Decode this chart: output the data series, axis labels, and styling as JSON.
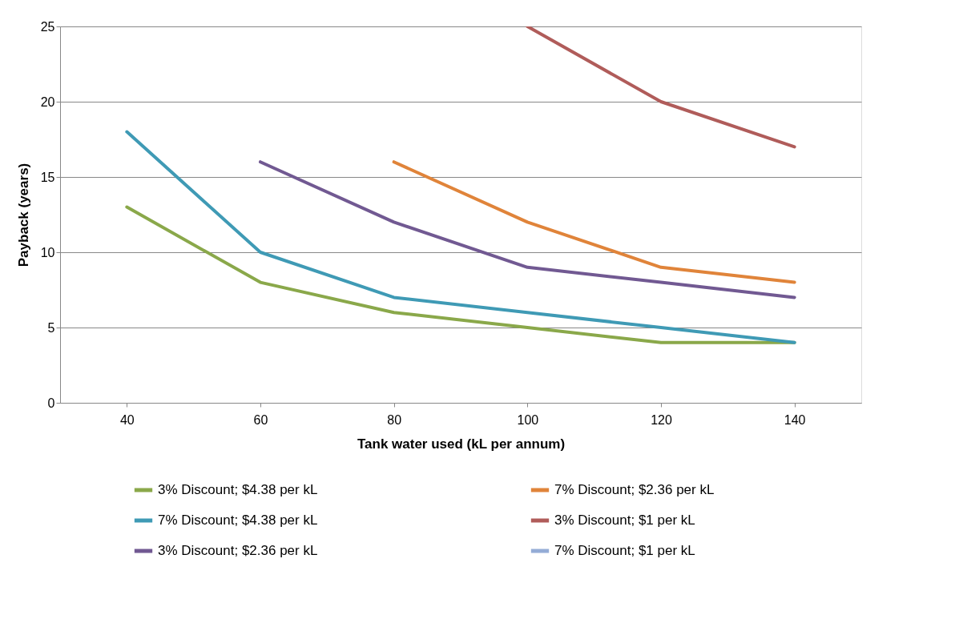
{
  "chart_data": {
    "type": "line",
    "xlabel": "Tank water used (kL per annum)",
    "ylabel": "Payback (years)",
    "categories": [
      "40",
      "60",
      "80",
      "100",
      "120",
      "140"
    ],
    "series": [
      {
        "name": "3% Discount;  $4.38 per kL",
        "color": "#8aa84a",
        "values": [
          13,
          8,
          6,
          5,
          4,
          4
        ]
      },
      {
        "name": "7% Discount;  $4.38 per kL",
        "color": "#3f9ab5",
        "values": [
          18,
          10,
          7,
          6,
          5,
          4
        ]
      },
      {
        "name": "3% Discount;  $2.36 per kL",
        "color": "#715992",
        "values": [
          null,
          16,
          12,
          9,
          8,
          7
        ]
      },
      {
        "name": "7% Discount;  $2.36 per kL",
        "color": "#e0843a",
        "values": [
          null,
          null,
          16,
          12,
          9,
          8
        ]
      },
      {
        "name": "3% Discount;  $1 per kL",
        "color": "#b05c5a",
        "values": [
          null,
          null,
          null,
          25,
          20,
          17
        ]
      },
      {
        "name": "7% Discount;  $1 per kL",
        "color": "#94acd6",
        "values": [
          null,
          null,
          null,
          null,
          null,
          null
        ]
      }
    ],
    "ylim": [
      0,
      25
    ],
    "yticks": [
      0,
      5,
      10,
      15,
      20,
      25
    ],
    "grid": "y",
    "legend": "bottom",
    "marker": "none",
    "line_style": "solid"
  }
}
